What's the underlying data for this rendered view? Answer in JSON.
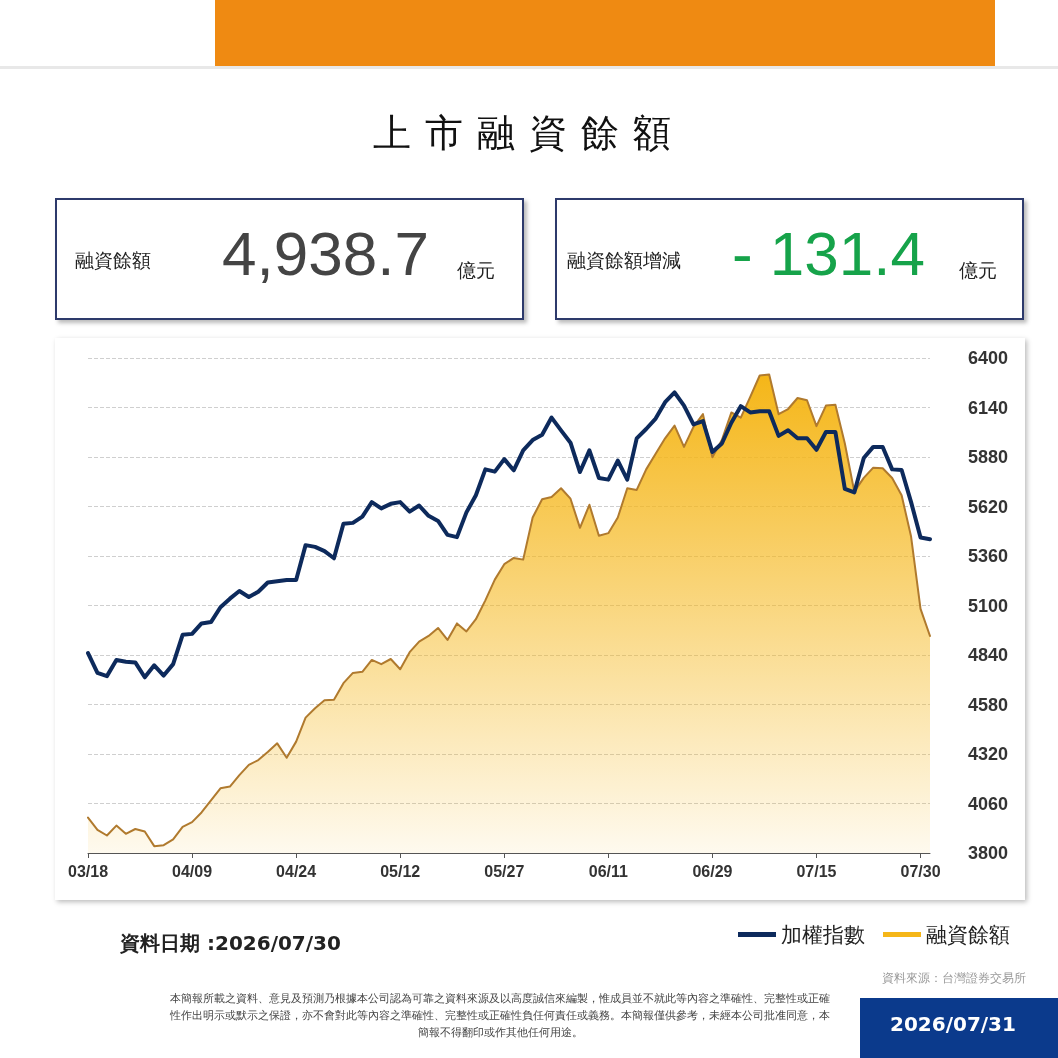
{
  "chart_data": {
    "type": "line",
    "title": "上市融資餘額",
    "categories": [
      "03/18",
      null,
      null,
      null,
      null,
      null,
      null,
      null,
      null,
      null,
      null,
      "04/09",
      null,
      null,
      null,
      null,
      null,
      null,
      null,
      null,
      null,
      null,
      "04/24",
      null,
      null,
      null,
      null,
      null,
      null,
      null,
      null,
      null,
      null,
      "05/12",
      null,
      null,
      null,
      null,
      null,
      null,
      null,
      null,
      null,
      null,
      "05/27",
      null,
      null,
      null,
      null,
      null,
      null,
      null,
      null,
      null,
      null,
      "06/11",
      null,
      null,
      null,
      null,
      null,
      null,
      null,
      null,
      null,
      null,
      "06/29",
      null,
      null,
      null,
      null,
      null,
      null,
      null,
      null,
      null,
      null,
      "07/15",
      null,
      null,
      null,
      null,
      null,
      null,
      null,
      null,
      null,
      null,
      "07/30",
      null
    ],
    "series": [
      {
        "name": "加權指數",
        "color": "#0d2a5c",
        "values": [
          4850,
          4746,
          4729,
          4814,
          4805,
          4801,
          4723,
          4786,
          4732,
          4792,
          4946,
          4951,
          5006,
          5013,
          5091,
          5136,
          5176,
          5145,
          5172,
          5221,
          5227,
          5234,
          5234,
          5417,
          5408,
          5386,
          5348,
          5529,
          5534,
          5567,
          5643,
          5610,
          5634,
          5643,
          5593,
          5625,
          5571,
          5544,
          5471,
          5459,
          5589,
          5679,
          5815,
          5803,
          5869,
          5810,
          5915,
          5969,
          5997,
          6087,
          6020,
          5955,
          5801,
          5915,
          5770,
          5761,
          5861,
          5761,
          5978,
          6027,
          6082,
          6168,
          6219,
          6150,
          6051,
          6069,
          5906,
          5951,
          6060,
          6147,
          6114,
          6120,
          6120,
          5991,
          6020,
          5978,
          5978,
          5918,
          6011,
          6011,
          5712,
          5694,
          5875,
          5933,
          5933,
          5815,
          5812,
          5643,
          5457,
          5448
        ]
      },
      {
        "name": "融資餘額",
        "type": "area",
        "color": "#f5b618",
        "values": [
          3986,
          3922,
          3892,
          3944,
          3901,
          3926,
          3913,
          3836,
          3841,
          3872,
          3937,
          3962,
          4013,
          4077,
          4140,
          4149,
          4209,
          4263,
          4288,
          4330,
          4376,
          4300,
          4385,
          4511,
          4560,
          4602,
          4605,
          4692,
          4746,
          4752,
          4814,
          4792,
          4819,
          4765,
          4855,
          4910,
          4940,
          4982,
          4919,
          5006,
          4964,
          5028,
          5127,
          5236,
          5317,
          5350,
          5341,
          5562,
          5658,
          5670,
          5716,
          5661,
          5508,
          5629,
          5466,
          5480,
          5562,
          5716,
          5707,
          5815,
          5897,
          5978,
          6045,
          5933,
          6038,
          6105,
          5879,
          5969,
          6114,
          6087,
          6196,
          6308,
          6313,
          6105,
          6132,
          6190,
          6178,
          6042,
          6150,
          6154,
          5951,
          5698,
          5770,
          5824,
          5821,
          5770,
          5679,
          5462,
          5082,
          4940
        ]
      }
    ],
    "ylim": [
      3800,
      6400
    ],
    "yticks": [
      3800,
      4060,
      4320,
      4580,
      4840,
      5100,
      5360,
      5620,
      5880,
      6140,
      6400
    ],
    "grid": "y",
    "line_style": "solid",
    "legend": "bottom right",
    "annotations": [
      "融資餘額",
      "4,938.7",
      "億元",
      "融資餘額增減",
      "- 131.4",
      "億元",
      "資料日期 :2026/07/30",
      "資料來源：台灣證券交易所",
      "本簡報所載之資料、意見及預測乃根據本公司認為可靠之資料來源及以高度誠信來編製，惟成員並不就此等內容之準確性、完整性或正確性作出明示或默示之保證，亦不會對此等內容之準確性、完整性或正確性負任何責任或義務。本簡報僅供參考，未經本公司批准同意，本簡報不得翻印或作其他任何用途。",
      "2026/07/31"
    ]
  }
}
